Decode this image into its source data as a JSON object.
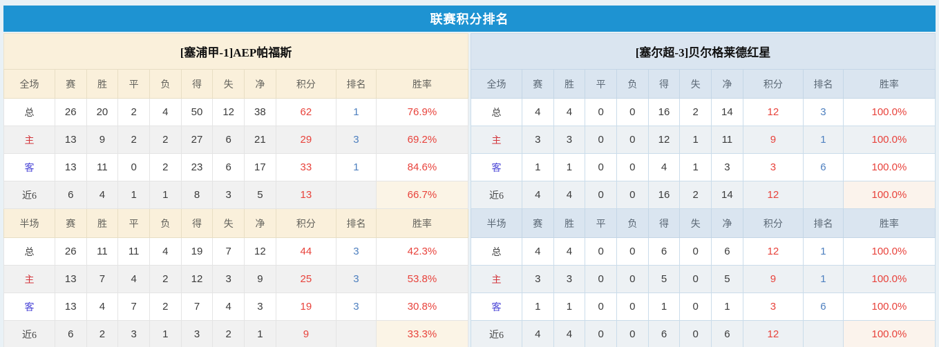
{
  "title": "联赛积分排名",
  "colors": {
    "title_bar": "#1e93d2",
    "title_text": "#ffffff",
    "left_panel_header": "#faf0db",
    "right_panel_header": "#dae5f0",
    "value_red": "#e8423b",
    "rank_blue": "#4d7fbf",
    "home_label_red": "#d2343a",
    "away_label_blue": "#4a45d6",
    "page_background": "#e9f1f6"
  },
  "panels": [
    {
      "team": "[塞浦甲-1]AEP帕福斯",
      "sections": [
        {
          "scope_label": "全场",
          "columns": [
            "赛",
            "胜",
            "平",
            "负",
            "得",
            "失",
            "净",
            "积分",
            "排名",
            "胜率"
          ],
          "rows": [
            {
              "label": "总",
              "label_color": "default",
              "values": [
                "26",
                "20",
                "2",
                "4",
                "50",
                "12",
                "38",
                "62",
                "1",
                "76.9%"
              ]
            },
            {
              "label": "主",
              "label_color": "red",
              "values": [
                "13",
                "9",
                "2",
                "2",
                "27",
                "6",
                "21",
                "29",
                "3",
                "69.2%"
              ]
            },
            {
              "label": "客",
              "label_color": "blue",
              "values": [
                "13",
                "11",
                "0",
                "2",
                "23",
                "6",
                "17",
                "33",
                "1",
                "84.6%"
              ]
            },
            {
              "label": "近6",
              "label_color": "default",
              "values": [
                "6",
                "4",
                "1",
                "1",
                "8",
                "3",
                "5",
                "13",
                "",
                "66.7%"
              ]
            }
          ]
        },
        {
          "scope_label": "半场",
          "columns": [
            "赛",
            "胜",
            "平",
            "负",
            "得",
            "失",
            "净",
            "积分",
            "排名",
            "胜率"
          ],
          "rows": [
            {
              "label": "总",
              "label_color": "default",
              "values": [
                "26",
                "11",
                "11",
                "4",
                "19",
                "7",
                "12",
                "44",
                "3",
                "42.3%"
              ]
            },
            {
              "label": "主",
              "label_color": "red",
              "values": [
                "13",
                "7",
                "4",
                "2",
                "12",
                "3",
                "9",
                "25",
                "3",
                "53.8%"
              ]
            },
            {
              "label": "客",
              "label_color": "blue",
              "values": [
                "13",
                "4",
                "7",
                "2",
                "7",
                "4",
                "3",
                "19",
                "3",
                "30.8%"
              ]
            },
            {
              "label": "近6",
              "label_color": "default",
              "values": [
                "6",
                "2",
                "3",
                "1",
                "3",
                "2",
                "1",
                "9",
                "",
                "33.3%"
              ]
            }
          ]
        }
      ]
    },
    {
      "team": "[塞尔超-3]贝尔格莱德红星",
      "sections": [
        {
          "scope_label": "全场",
          "columns": [
            "赛",
            "胜",
            "平",
            "负",
            "得",
            "失",
            "净",
            "积分",
            "排名",
            "胜率"
          ],
          "rows": [
            {
              "label": "总",
              "label_color": "default",
              "values": [
                "4",
                "4",
                "0",
                "0",
                "16",
                "2",
                "14",
                "12",
                "3",
                "100.0%"
              ]
            },
            {
              "label": "主",
              "label_color": "red",
              "values": [
                "3",
                "3",
                "0",
                "0",
                "12",
                "1",
                "11",
                "9",
                "1",
                "100.0%"
              ]
            },
            {
              "label": "客",
              "label_color": "blue",
              "values": [
                "1",
                "1",
                "0",
                "0",
                "4",
                "1",
                "3",
                "3",
                "6",
                "100.0%"
              ]
            },
            {
              "label": "近6",
              "label_color": "default",
              "values": [
                "4",
                "4",
                "0",
                "0",
                "16",
                "2",
                "14",
                "12",
                "",
                "100.0%"
              ]
            }
          ]
        },
        {
          "scope_label": "半场",
          "columns": [
            "赛",
            "胜",
            "平",
            "负",
            "得",
            "失",
            "净",
            "积分",
            "排名",
            "胜率"
          ],
          "rows": [
            {
              "label": "总",
              "label_color": "default",
              "values": [
                "4",
                "4",
                "0",
                "0",
                "6",
                "0",
                "6",
                "12",
                "1",
                "100.0%"
              ]
            },
            {
              "label": "主",
              "label_color": "red",
              "values": [
                "3",
                "3",
                "0",
                "0",
                "5",
                "0",
                "5",
                "9",
                "1",
                "100.0%"
              ]
            },
            {
              "label": "客",
              "label_color": "blue",
              "values": [
                "1",
                "1",
                "0",
                "0",
                "1",
                "0",
                "1",
                "3",
                "6",
                "100.0%"
              ]
            },
            {
              "label": "近6",
              "label_color": "default",
              "values": [
                "4",
                "4",
                "0",
                "0",
                "6",
                "0",
                "6",
                "12",
                "",
                "100.0%"
              ]
            }
          ]
        }
      ]
    }
  ]
}
